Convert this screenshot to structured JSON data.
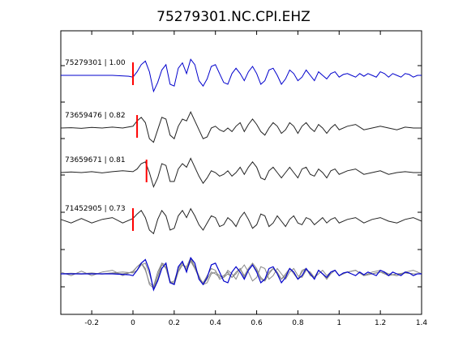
{
  "chart_data": {
    "type": "line",
    "title": "75279301.NC.CPI.EHZ",
    "xlabel": "",
    "ylabel": "",
    "xlim": [
      -0.35,
      1.4
    ],
    "xticks": [
      -0.2,
      0,
      0.2,
      0.4,
      0.6,
      0.8,
      1,
      1.2,
      1.4
    ],
    "xtick_labels": [
      "-0.2",
      "0",
      "0.2",
      "0.4",
      "0.6",
      "0.8",
      "1",
      "1.2",
      "1.4"
    ],
    "grid": false,
    "colors": {
      "reference": "#0000cc",
      "trace": "#222222",
      "overlay": "#888888",
      "pick": "#ff0000"
    },
    "traces": [
      {
        "label": "75279301 | 1.00",
        "pick_time": 0.0,
        "color": "#0000cc",
        "t": [
          -0.35,
          -0.1,
          -0.02,
          0.0,
          0.02,
          0.04,
          0.06,
          0.08,
          0.1,
          0.12,
          0.14,
          0.16,
          0.18,
          0.2,
          0.22,
          0.24,
          0.26,
          0.28,
          0.3,
          0.32,
          0.34,
          0.36,
          0.38,
          0.4,
          0.42,
          0.44,
          0.46,
          0.48,
          0.5,
          0.52,
          0.54,
          0.56,
          0.58,
          0.6,
          0.62,
          0.64,
          0.66,
          0.68,
          0.7,
          0.72,
          0.74,
          0.76,
          0.78,
          0.8,
          0.82,
          0.84,
          0.86,
          0.88,
          0.9,
          0.92,
          0.94,
          0.96,
          0.98,
          1.0,
          1.02,
          1.04,
          1.06,
          1.08,
          1.1,
          1.12,
          1.14,
          1.16,
          1.18,
          1.2,
          1.22,
          1.24,
          1.26,
          1.28,
          1.3,
          1.32,
          1.34,
          1.36,
          1.38,
          1.4
        ],
        "v": [
          0,
          0,
          -0.05,
          -0.1,
          0.2,
          0.6,
          0.8,
          0.2,
          -0.9,
          -0.4,
          0.3,
          0.6,
          -0.5,
          -0.6,
          0.4,
          0.7,
          0.1,
          0.9,
          0.6,
          -0.3,
          -0.6,
          -0.2,
          0.5,
          0.6,
          0.1,
          -0.4,
          -0.5,
          0.1,
          0.4,
          0.1,
          -0.3,
          0.2,
          0.5,
          0.1,
          -0.5,
          -0.3,
          0.3,
          0.4,
          0.0,
          -0.5,
          -0.2,
          0.3,
          0.1,
          -0.3,
          -0.1,
          0.3,
          0.0,
          -0.3,
          0.2,
          0.0,
          -0.2,
          0.1,
          0.2,
          -0.1,
          0.05,
          0.1,
          0.0,
          -0.1,
          0.1,
          -0.05,
          0.1,
          0.0,
          -0.1,
          0.2,
          0.1,
          -0.1,
          0.1,
          0.0,
          -0.1,
          0.1,
          0.05,
          -0.1,
          0.0,
          0.0
        ]
      },
      {
        "label": "73659476 | 0.82",
        "pick_time": 0.02,
        "color": "#222222",
        "t": [
          -0.35,
          -0.3,
          -0.25,
          -0.2,
          -0.15,
          -0.1,
          -0.05,
          0.0,
          0.02,
          0.04,
          0.06,
          0.08,
          0.1,
          0.12,
          0.14,
          0.16,
          0.18,
          0.2,
          0.22,
          0.24,
          0.26,
          0.28,
          0.3,
          0.32,
          0.34,
          0.36,
          0.38,
          0.4,
          0.42,
          0.44,
          0.46,
          0.48,
          0.5,
          0.52,
          0.54,
          0.56,
          0.58,
          0.6,
          0.62,
          0.64,
          0.66,
          0.68,
          0.7,
          0.72,
          0.74,
          0.76,
          0.78,
          0.8,
          0.82,
          0.84,
          0.86,
          0.88,
          0.9,
          0.92,
          0.94,
          0.96,
          0.98,
          1.0,
          1.04,
          1.08,
          1.12,
          1.16,
          1.2,
          1.24,
          1.28,
          1.32,
          1.36,
          1.4
        ],
        "v": [
          0,
          0.02,
          -0.02,
          0.03,
          0.0,
          0.05,
          0.0,
          0.1,
          0.4,
          0.6,
          0.3,
          -0.6,
          -0.8,
          -0.1,
          0.6,
          0.5,
          -0.4,
          -0.6,
          0.1,
          0.5,
          0.4,
          0.9,
          0.4,
          -0.1,
          -0.6,
          -0.5,
          0.0,
          0.1,
          -0.1,
          -0.2,
          0.0,
          -0.2,
          0.1,
          0.3,
          -0.2,
          0.2,
          0.5,
          0.2,
          -0.2,
          -0.4,
          0.0,
          0.3,
          0.1,
          -0.3,
          -0.1,
          0.3,
          0.1,
          -0.3,
          0.1,
          0.3,
          0.0,
          -0.2,
          0.2,
          0.0,
          -0.3,
          0.0,
          0.2,
          -0.1,
          0.1,
          0.2,
          -0.1,
          0.0,
          0.1,
          0.0,
          -0.1,
          0.05,
          0.0,
          0.0
        ]
      },
      {
        "label": "73659671 | 0.81",
        "pick_time": 0.05,
        "color": "#222222",
        "t": [
          -0.35,
          -0.3,
          -0.25,
          -0.2,
          -0.15,
          -0.1,
          -0.05,
          0.0,
          0.02,
          0.04,
          0.06,
          0.08,
          0.1,
          0.12,
          0.14,
          0.16,
          0.18,
          0.2,
          0.22,
          0.24,
          0.26,
          0.28,
          0.3,
          0.32,
          0.34,
          0.36,
          0.38,
          0.4,
          0.42,
          0.44,
          0.46,
          0.48,
          0.5,
          0.52,
          0.54,
          0.56,
          0.58,
          0.6,
          0.62,
          0.64,
          0.66,
          0.68,
          0.7,
          0.72,
          0.74,
          0.76,
          0.78,
          0.8,
          0.82,
          0.84,
          0.86,
          0.88,
          0.9,
          0.92,
          0.94,
          0.96,
          0.98,
          1.0,
          1.04,
          1.08,
          1.12,
          1.16,
          1.2,
          1.24,
          1.28,
          1.32,
          1.36,
          1.4
        ],
        "v": [
          0,
          0.03,
          0.0,
          0.05,
          -0.02,
          0.05,
          0.1,
          0.05,
          0.2,
          0.5,
          0.6,
          0.0,
          -0.8,
          -0.3,
          0.5,
          0.4,
          -0.5,
          -0.5,
          0.2,
          0.5,
          0.3,
          0.8,
          0.3,
          -0.2,
          -0.6,
          -0.3,
          0.1,
          0.0,
          -0.2,
          -0.1,
          0.1,
          -0.2,
          0.0,
          0.3,
          -0.1,
          0.3,
          0.6,
          0.3,
          -0.3,
          -0.4,
          0.1,
          0.3,
          0.0,
          -0.3,
          0.0,
          0.3,
          0.0,
          -0.3,
          0.2,
          0.3,
          -0.1,
          -0.2,
          0.2,
          0.0,
          -0.3,
          0.1,
          0.2,
          -0.1,
          0.1,
          0.2,
          -0.1,
          0.0,
          0.1,
          -0.1,
          0.0,
          0.05,
          0.0,
          0.0
        ]
      },
      {
        "label": "71452905 | 0.73",
        "pick_time": 0.0,
        "color": "#222222",
        "t": [
          -0.35,
          -0.3,
          -0.25,
          -0.2,
          -0.15,
          -0.1,
          -0.05,
          0.0,
          0.02,
          0.04,
          0.06,
          0.08,
          0.1,
          0.12,
          0.14,
          0.16,
          0.18,
          0.2,
          0.22,
          0.24,
          0.26,
          0.28,
          0.3,
          0.32,
          0.34,
          0.36,
          0.38,
          0.4,
          0.42,
          0.44,
          0.46,
          0.48,
          0.5,
          0.52,
          0.54,
          0.56,
          0.58,
          0.6,
          0.62,
          0.64,
          0.66,
          0.68,
          0.7,
          0.72,
          0.74,
          0.76,
          0.78,
          0.8,
          0.82,
          0.84,
          0.86,
          0.88,
          0.9,
          0.92,
          0.94,
          0.96,
          0.98,
          1.0,
          1.04,
          1.08,
          1.12,
          1.16,
          1.2,
          1.24,
          1.28,
          1.32,
          1.36,
          1.4
        ],
        "v": [
          0.1,
          -0.1,
          0.15,
          -0.1,
          0.1,
          0.2,
          -0.1,
          0.15,
          0.4,
          0.6,
          0.2,
          -0.5,
          -0.7,
          0.1,
          0.6,
          0.3,
          -0.5,
          -0.4,
          0.3,
          0.6,
          0.2,
          0.7,
          0.3,
          -0.2,
          -0.5,
          -0.1,
          0.3,
          0.2,
          -0.3,
          -0.2,
          0.2,
          0.0,
          -0.3,
          0.2,
          0.5,
          0.1,
          -0.4,
          -0.2,
          0.4,
          0.3,
          -0.3,
          -0.1,
          0.3,
          0.0,
          -0.3,
          0.1,
          0.3,
          -0.1,
          -0.2,
          0.2,
          0.1,
          -0.2,
          0.0,
          0.2,
          -0.1,
          0.1,
          0.2,
          -0.1,
          0.1,
          0.2,
          -0.1,
          0.1,
          0.2,
          0.0,
          -0.1,
          0.1,
          0.2,
          0.0
        ]
      }
    ],
    "overlay_baseline_index": 4
  }
}
